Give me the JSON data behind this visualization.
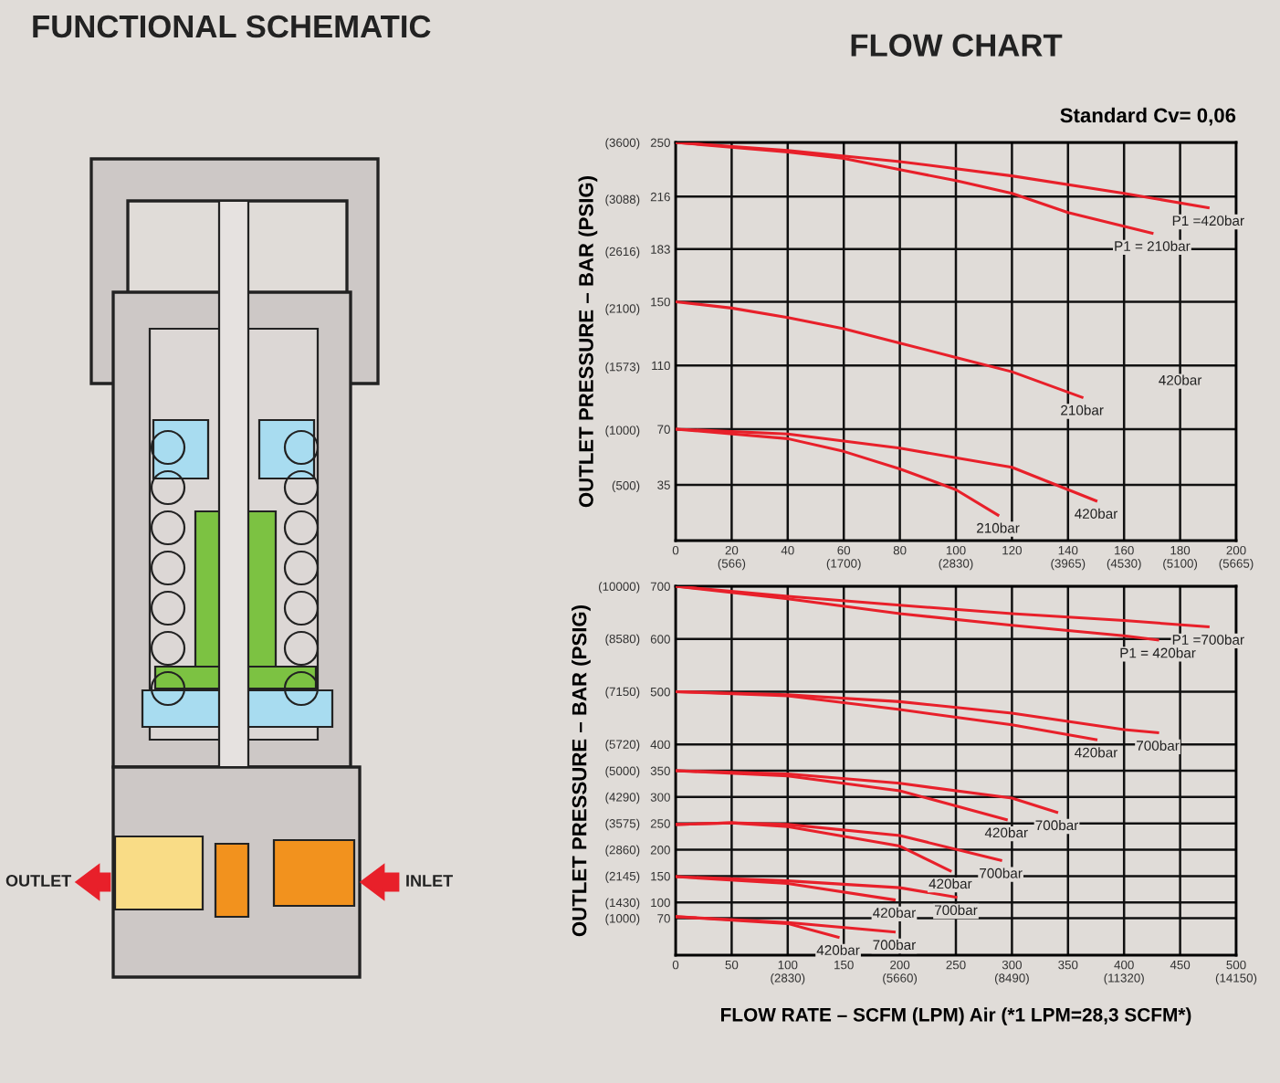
{
  "chart_data": [
    {
      "type": "other",
      "title": "FUNCTIONAL SCHEMATIC",
      "annotations": [
        "OUTLET",
        "INLET"
      ]
    },
    {
      "type": "line",
      "title": "FLOW CHART",
      "subtitle": "Standard Cv= 0,06",
      "y2label": "OUTLET PRESSURE – BAR (PSIG)",
      "grid": true,
      "xlim": [
        0,
        200
      ],
      "ylim": [
        0,
        250
      ],
      "y2lim": [
        0,
        3600
      ],
      "xticks": [
        0,
        {
          "value": 20,
          "label": "20\n(566)"
        },
        40,
        {
          "value": 60,
          "label": "60\n(1700)"
        },
        80,
        {
          "value": 100,
          "label": "100\n(2830)"
        },
        120,
        {
          "value": 140,
          "label": "140\n(3965)"
        },
        {
          "value": 160,
          "label": "160\n(4530)"
        },
        {
          "value": 180,
          "label": "180\n(5100)"
        },
        {
          "value": 200,
          "label": "200\n(5665)"
        }
      ],
      "yticks": [
        35,
        70,
        110,
        150,
        183,
        216,
        250
      ],
      "y2ticks": [
        {
          "value": 500,
          "label": "(500)"
        },
        {
          "value": 1000,
          "label": "(1000)"
        },
        {
          "value": 1573,
          "label": "(1573)"
        },
        {
          "value": 2100,
          "label": "(2100)"
        },
        {
          "value": 2616,
          "label": "(2616)"
        },
        {
          "value": 3088,
          "label": "(3088)"
        },
        {
          "value": 3600,
          "label": "(3600)"
        }
      ],
      "annotations": [
        "420bar"
      ],
      "series": [
        {
          "name": "P1 =420bar",
          "color": "#e8202a",
          "x": [
            0,
            40,
            80,
            120,
            160,
            190
          ],
          "values": [
            250,
            245,
            238,
            229,
            218,
            209
          ]
        },
        {
          "name": "P1 = 210bar",
          "color": "#e8202a",
          "x": [
            0,
            40,
            60,
            80,
            100,
            120,
            140,
            170
          ],
          "values": [
            250,
            244,
            240,
            233,
            226,
            218,
            206,
            193
          ]
        },
        {
          "name": "210bar",
          "color": "#e8202a",
          "x": [
            0,
            20,
            40,
            60,
            80,
            100,
            120,
            145
          ],
          "values": [
            150,
            146,
            140,
            133,
            124,
            115,
            106,
            90
          ]
        },
        {
          "name": "420bar",
          "color": "#e8202a",
          "x": [
            0,
            40,
            80,
            120,
            150
          ],
          "values": [
            70,
            67,
            58,
            46,
            25
          ]
        },
        {
          "name": "210bar",
          "color": "#e8202a",
          "x": [
            0,
            40,
            60,
            80,
            100,
            115
          ],
          "values": [
            70,
            64,
            56,
            45,
            32,
            16
          ]
        }
      ]
    },
    {
      "type": "line",
      "y2label": "OUTLET PRESSURE – BAR (PSIG)",
      "xlabel": "FLOW RATE – SCFM (LPM) Air (*1 LPM=28,3 SCFM*)",
      "grid": true,
      "xlim": [
        0,
        500
      ],
      "ylim": [
        0,
        700
      ],
      "y2lim": [
        0,
        10000
      ],
      "xticks": [
        0,
        50,
        {
          "value": 100,
          "label": "100\n(2830)"
        },
        150,
        {
          "value": 200,
          "label": "200\n(5660)"
        },
        250,
        {
          "value": 300,
          "label": "300\n(8490)"
        },
        350,
        {
          "value": 400,
          "label": "400\n(11320)"
        },
        450,
        {
          "value": 500,
          "label": "500\n(14150)"
        }
      ],
      "yticks": [
        70,
        100,
        150,
        200,
        250,
        300,
        350,
        400,
        500,
        600,
        700
      ],
      "y2ticks": [
        {
          "value": 1000,
          "label": "(1000)"
        },
        {
          "value": 1430,
          "label": "(1430)"
        },
        {
          "value": 2145,
          "label": "(2145)"
        },
        {
          "value": 2860,
          "label": "(2860)"
        },
        {
          "value": 3575,
          "label": "(3575)"
        },
        {
          "value": 4290,
          "label": "(4290)"
        },
        {
          "value": 5000,
          "label": "(5000)"
        },
        {
          "value": 5720,
          "label": "(5720)"
        },
        {
          "value": 7150,
          "label": "(7150)"
        },
        {
          "value": 8580,
          "label": "(8580)"
        },
        {
          "value": 10000,
          "label": "(10000)"
        }
      ],
      "series": [
        {
          "name": "P1 =700bar",
          "color": "#e8202a",
          "x": [
            0,
            100,
            200,
            300,
            400,
            475
          ],
          "values": [
            700,
            681,
            664,
            648,
            635,
            623
          ]
        },
        {
          "name": "P1 = 420bar",
          "color": "#e8202a",
          "x": [
            0,
            100,
            200,
            300,
            400,
            430
          ],
          "values": [
            700,
            676,
            648,
            626,
            606,
            598
          ]
        },
        {
          "name": "700bar",
          "color": "#e8202a",
          "x": [
            0,
            100,
            200,
            300,
            400,
            430
          ],
          "values": [
            500,
            494,
            481,
            459,
            428,
            422
          ]
        },
        {
          "name": "420bar",
          "color": "#e8202a",
          "x": [
            0,
            100,
            200,
            300,
            375
          ],
          "values": [
            500,
            492,
            466,
            437,
            409
          ]
        },
        {
          "name": "700bar",
          "color": "#e8202a",
          "x": [
            0,
            100,
            200,
            300,
            340
          ],
          "values": [
            350,
            344,
            326,
            298,
            271
          ]
        },
        {
          "name": "420bar",
          "color": "#e8202a",
          "x": [
            0,
            100,
            200,
            295
          ],
          "values": [
            350,
            340,
            312,
            257
          ]
        },
        {
          "name": "700bar",
          "color": "#e8202a",
          "x": [
            0,
            50,
            100,
            200,
            290
          ],
          "values": [
            248,
            251,
            248,
            227,
            180
          ]
        },
        {
          "name": "420bar",
          "color": "#e8202a",
          "x": [
            0,
            50,
            100,
            200,
            245
          ],
          "values": [
            248,
            251,
            244,
            207,
            160
          ]
        },
        {
          "name": "700bar",
          "color": "#e8202a",
          "x": [
            0,
            100,
            200,
            250
          ],
          "values": [
            149,
            141,
            128,
            110
          ]
        },
        {
          "name": "420bar",
          "color": "#e8202a",
          "x": [
            0,
            100,
            195
          ],
          "values": [
            149,
            136,
            105
          ]
        },
        {
          "name": "700bar",
          "color": "#e8202a",
          "x": [
            0,
            100,
            195
          ],
          "values": [
            73,
            62,
            44
          ]
        },
        {
          "name": "420bar",
          "color": "#e8202a",
          "x": [
            0,
            100,
            145
          ],
          "values": [
            73,
            60,
            34
          ]
        }
      ]
    }
  ]
}
